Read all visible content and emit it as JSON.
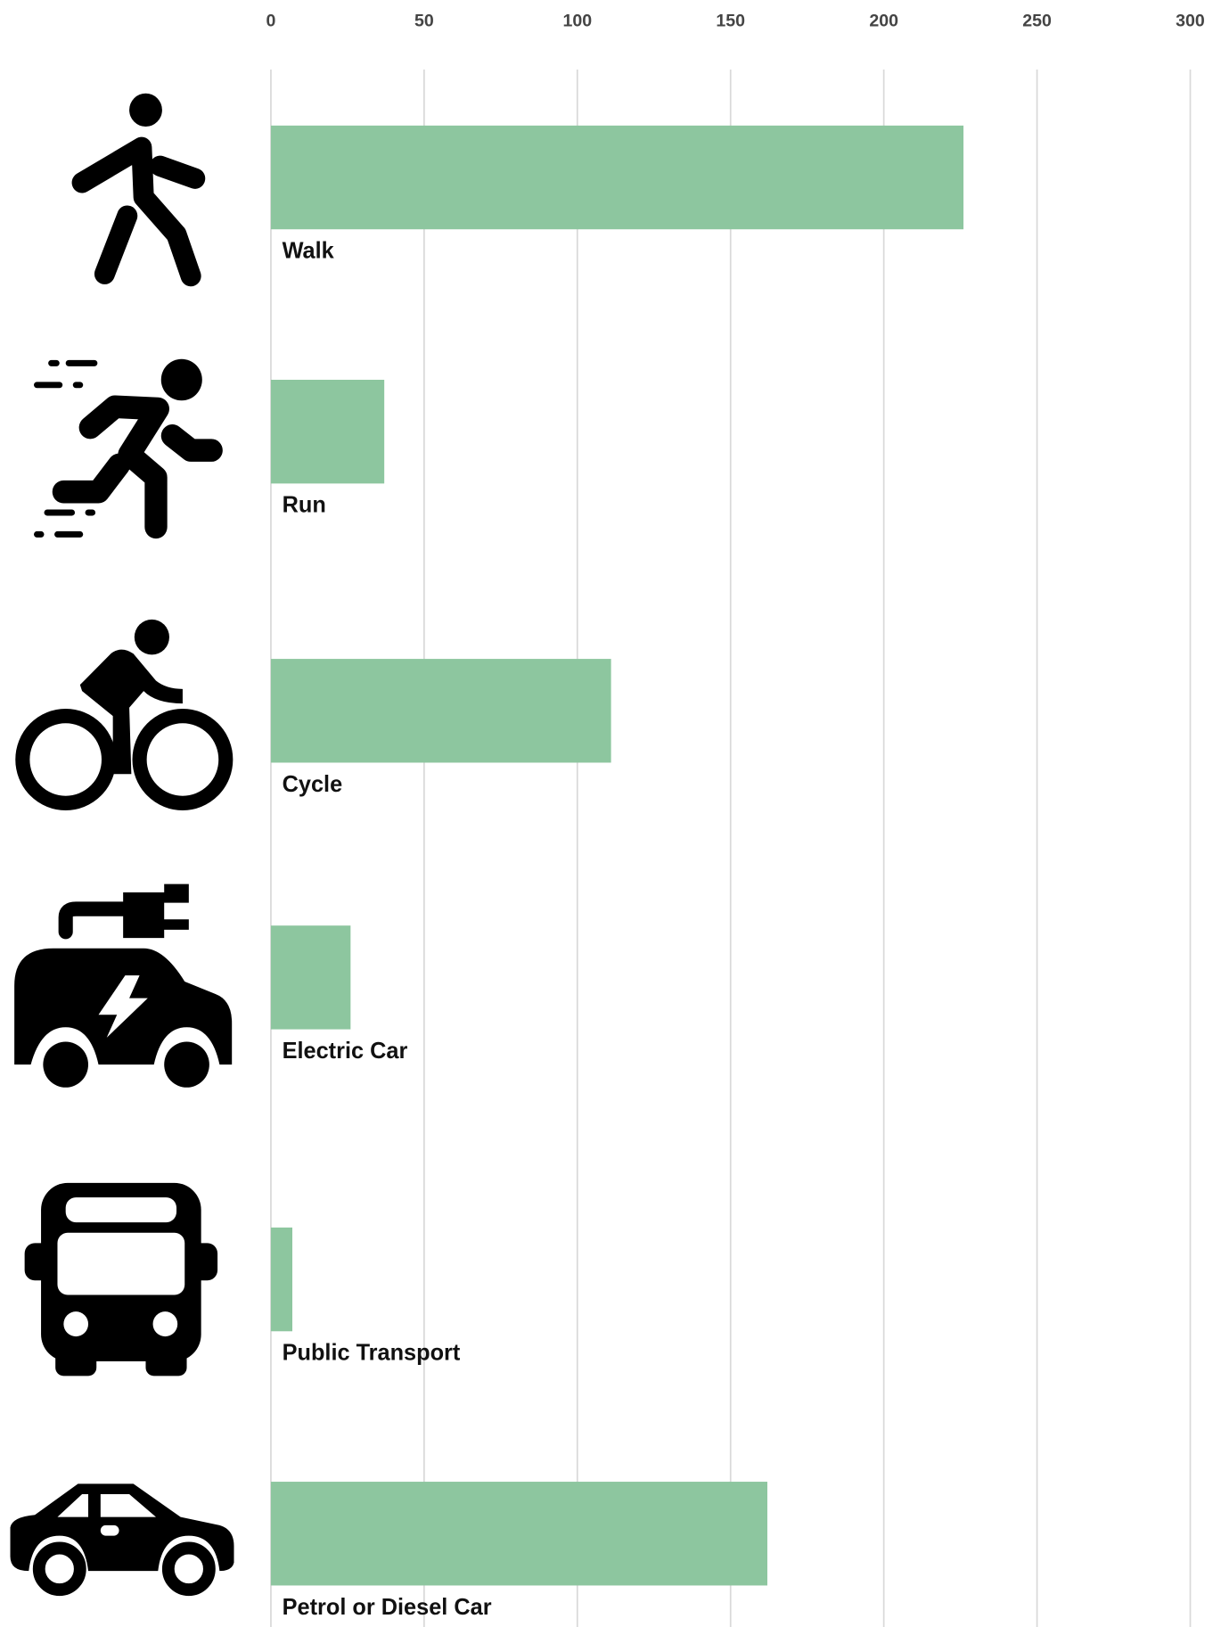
{
  "chart_data": {
    "type": "bar",
    "orientation": "horizontal",
    "categories": [
      "Walk",
      "Run",
      "Cycle",
      "Electric Car",
      "Public Transport",
      "Petrol or Diesel Car"
    ],
    "values": [
      226,
      37,
      111,
      26,
      7,
      162
    ],
    "color": "#8dc69f",
    "xlim": [
      0,
      300
    ],
    "xticks": [
      0,
      50,
      100,
      150,
      200,
      250,
      300
    ],
    "grid": true
  }
}
